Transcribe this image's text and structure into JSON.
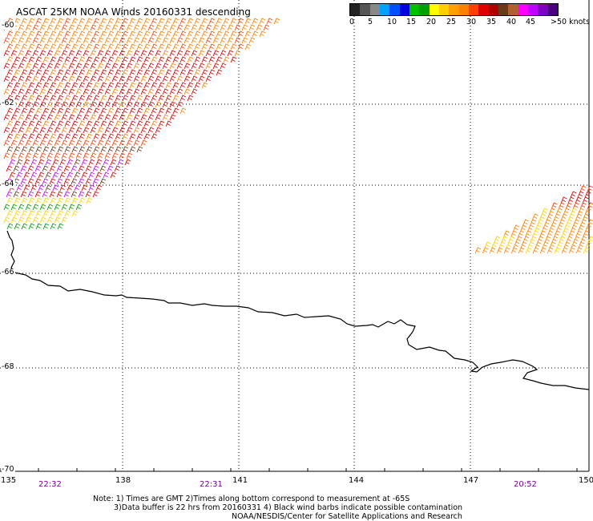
{
  "title": "ASCAT 25KM NOAA Winds 20160331 descending",
  "legend": {
    "colors": [
      "#222222",
      "#555555",
      "#888888",
      "#00a0ff",
      "#0050ff",
      "#0000e0",
      "#00c000",
      "#00a000",
      "#ffff00",
      "#ffd000",
      "#ffa000",
      "#ff8000",
      "#ff4000",
      "#e00000",
      "#b00000",
      "#6b3a1a",
      "#b06030",
      "#ff00ff",
      "#c000ff",
      "#8000c0",
      "#4b0082"
    ],
    "labels": [
      "0",
      "5",
      "10",
      "15",
      "20",
      "25",
      "30",
      "35",
      "40",
      "45",
      ">50 knots"
    ]
  },
  "map": {
    "lat_labels": [
      "-60",
      "-62",
      "-64",
      "-66",
      "-68",
      "-70"
    ],
    "lon_labels": [
      "135",
      "138",
      "141",
      "144",
      "147",
      "150"
    ],
    "time_labels": [
      "22:32",
      "22:31",
      "20:52"
    ]
  },
  "notes": {
    "line1": "Note: 1) Times are GMT 2)Times along bottom correspond to measurement at -65S",
    "line2": "3)Data buffer is 22 hrs from 20160331 4) Black wind barbs indicate possible contamination",
    "line3": "NOAA/NESDIS/Center for Satellite Applications and Research"
  }
}
